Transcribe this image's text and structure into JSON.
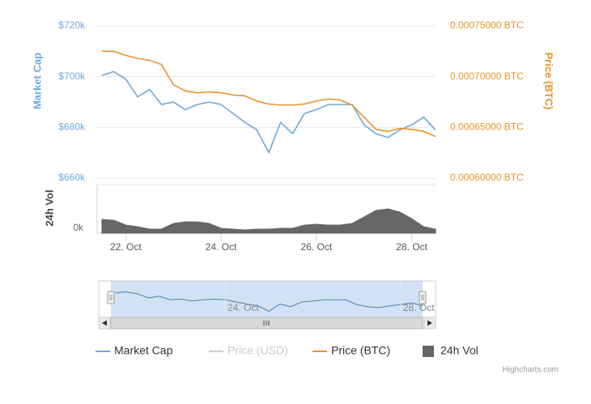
{
  "chart_data": {
    "type": "line",
    "x": [
      21.5,
      21.75,
      22,
      22.25,
      22.5,
      22.75,
      23,
      23.25,
      23.5,
      23.75,
      24,
      24.25,
      24.5,
      24.75,
      25,
      25.25,
      25.5,
      25.75,
      26,
      26.25,
      26.5,
      26.75,
      27,
      27.25,
      27.5,
      27.75,
      28,
      28.25,
      28.5
    ],
    "xlim": [
      21.4,
      28.5
    ],
    "xticks": [
      {
        "value": 22,
        "label": "22. Oct"
      },
      {
        "value": 24,
        "label": "24. Oct"
      },
      {
        "value": 26,
        "label": "26. Oct"
      },
      {
        "value": 28,
        "label": "28. Oct"
      }
    ],
    "ylabel": "Market Cap",
    "ylim": [
      660000,
      720000
    ],
    "yticks": [
      {
        "value": 660000,
        "label": "$660k"
      },
      {
        "value": 680000,
        "label": "$680k"
      },
      {
        "value": 700000,
        "label": "$700k"
      },
      {
        "value": 720000,
        "label": "$720k"
      }
    ],
    "y2label": "Price (BTC)",
    "y2lim": [
      0.0006,
      0.00075
    ],
    "y2ticks": [
      {
        "value": 0.0006,
        "label": "0.00060000 BTC"
      },
      {
        "value": 0.00065,
        "label": "0.00065000 BTC"
      },
      {
        "value": 0.0007,
        "label": "0.00070000 BTC"
      },
      {
        "value": 0.00075,
        "label": "0.00075000 BTC"
      }
    ],
    "y3label": "24h Vol",
    "y3lim": [
      0,
      60
    ],
    "y3ticks": [
      {
        "value": 0,
        "label": "0k"
      }
    ],
    "grid": true,
    "series": [
      {
        "name": "Market Cap",
        "color": "#6fa8dc",
        "values": [
          700500,
          702000,
          699000,
          692000,
          695000,
          689000,
          690000,
          687000,
          689000,
          690000,
          689000,
          685500,
          682000,
          679000,
          670000,
          682000,
          677500,
          685500,
          687000,
          689000,
          689000,
          689000,
          681000,
          677500,
          676000,
          679000,
          681000,
          684000,
          679000
        ]
      },
      {
        "name": "Price (USD)",
        "color": "#cccccc",
        "visible": false
      },
      {
        "name": "Price (BTC)",
        "color": "#e8922a",
        "axis": "y2",
        "values": [
          0.000725,
          0.000725,
          0.000721,
          0.000718,
          0.000716,
          0.000712,
          0.000692,
          0.000686,
          0.000684,
          0.000685,
          0.000684,
          0.000682,
          0.000681,
          0.000676,
          0.000673,
          0.000672,
          0.000672,
          0.000673,
          0.000676,
          0.000678,
          0.000677,
          0.000672,
          0.00066,
          0.000648,
          0.000646,
          0.000649,
          0.000648,
          0.000646,
          0.000641
        ]
      },
      {
        "name": "24h Vol",
        "color": "#666666",
        "type": "area",
        "axis": "y3",
        "values": [
          17,
          16,
          10,
          8,
          5,
          5,
          12,
          14,
          14,
          12,
          6,
          5,
          4,
          5,
          5,
          6,
          6,
          10,
          11,
          10,
          10,
          12,
          20,
          28,
          30,
          26,
          18,
          8,
          5
        ]
      }
    ],
    "credits": "Highcharts.com"
  }
}
